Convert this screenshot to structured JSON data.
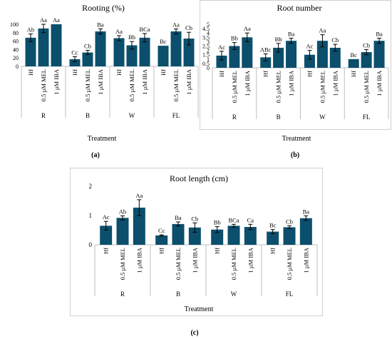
{
  "colors": {
    "bar": "#0b4f6c",
    "axis": "#bfbfbf",
    "text": "#000000",
    "panel_border": "#d0d0d0"
  },
  "chart_data": [
    {
      "type": "bar",
      "panel_label": "(a)",
      "title": "Rooting (%)",
      "xlabel": "Treatment",
      "ylabel": "",
      "ylim": [
        0,
        100
      ],
      "yticks": [
        0,
        20,
        40,
        60,
        80,
        100
      ],
      "groups": [
        "R",
        "B",
        "W",
        "FL"
      ],
      "categories": [
        "Hf",
        "0.5 µM MEL",
        "1 µM IBA"
      ],
      "values": [
        [
          68,
          90,
          100
        ],
        [
          17,
          33,
          83
        ],
        [
          67,
          50,
          68
        ],
        [
          49,
          83,
          66
        ]
      ],
      "errors": [
        [
          9,
          10,
          0
        ],
        [
          6,
          5,
          6
        ],
        [
          6,
          9,
          10
        ],
        [
          0,
          6,
          15
        ]
      ],
      "labels": [
        [
          "Ab",
          "Aa",
          "Aa"
        ],
        [
          "Cc",
          "Cb",
          "Ba"
        ],
        [
          "Aa",
          "Bb",
          "BCa"
        ],
        [
          "Bc",
          "Aa",
          "Cb"
        ]
      ]
    },
    {
      "type": "bar",
      "panel_label": "(b)",
      "title": "Root number",
      "xlabel": "Treatment",
      "ylabel": "",
      "ylim": [
        0,
        5
      ],
      "yticks": [
        0,
        0.5,
        1,
        1.5,
        2,
        2.5,
        3,
        3.5,
        4,
        4.5,
        5
      ],
      "groups": [
        "R",
        "B",
        "W",
        "FL"
      ],
      "categories": [
        "Hf",
        "0.5 µM MEL",
        "1 µM IBA"
      ],
      "values": [
        [
          1.4,
          2.5,
          3.5
        ],
        [
          1.2,
          2.3,
          3.1
        ],
        [
          1.5,
          3.1,
          2.3
        ],
        [
          1.0,
          1.8,
          3.1
        ]
      ],
      "errors": [
        [
          0.5,
          0.4,
          0.5
        ],
        [
          0.4,
          0.5,
          0.3
        ],
        [
          0.5,
          0.7,
          0.4
        ],
        [
          0,
          0.3,
          0.3
        ]
      ],
      "labels": [
        [
          "Ac",
          "Bb",
          "Aa"
        ],
        [
          "ABc",
          "Bb",
          "Ba"
        ],
        [
          "Ac",
          "Aa",
          "Cb"
        ],
        [
          "Bc",
          "Cb",
          "Ba"
        ]
      ]
    },
    {
      "type": "bar",
      "panel_label": "(c)",
      "title": "Root length (cm)",
      "xlabel": "Treatment",
      "ylabel": "",
      "ylim": [
        0,
        2
      ],
      "yticks": [
        0,
        1,
        2
      ],
      "groups": [
        "R",
        "B",
        "W",
        "FL"
      ],
      "categories": [
        "Hf",
        "0.5 µM MEL",
        "1 µM IBA"
      ],
      "values": [
        [
          0.65,
          0.92,
          1.27
        ],
        [
          0.32,
          0.71,
          0.59
        ],
        [
          0.52,
          0.65,
          0.61
        ],
        [
          0.45,
          0.6,
          0.91
        ]
      ],
      "errors": [
        [
          0.15,
          0.07,
          0.27
        ],
        [
          0.02,
          0.07,
          0.16
        ],
        [
          0.1,
          0.05,
          0.09
        ],
        [
          0.07,
          0.05,
          0.08
        ]
      ],
      "labels": [
        [
          "Ac",
          "Ab",
          "Aa"
        ],
        [
          "Cc",
          "Ba",
          "Cb"
        ],
        [
          "Bb",
          "BCa",
          "Ca"
        ],
        [
          "Bc",
          "Cb",
          "Ba"
        ]
      ]
    }
  ]
}
